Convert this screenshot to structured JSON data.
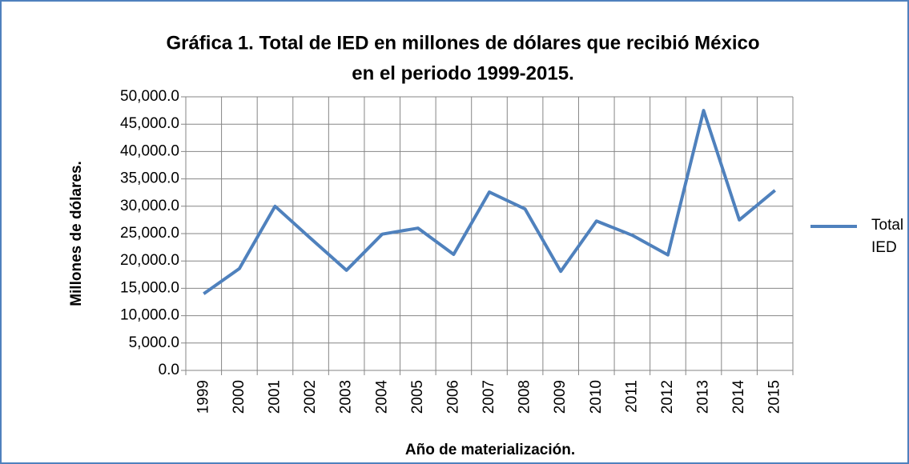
{
  "chart_data": {
    "type": "line",
    "title": [
      "Gráfica 1. Total de IED en millones de dólares que recibió México",
      "en el periodo 1999-2015."
    ],
    "x_label": "Año de materialización.",
    "y_label": "Millones de dólares.",
    "categories": [
      "1999",
      "2000",
      "2001",
      "2002",
      "2003",
      "2004",
      "2005",
      "2006",
      "2007",
      "2008",
      "2009",
      "2010",
      "2011",
      "2012",
      "2013",
      "2014",
      "2015"
    ],
    "series": [
      {
        "name": "Total IED",
        "color": "#4f81bd",
        "values": [
          14000,
          18600,
          30000,
          24100,
          18300,
          24900,
          26000,
          21200,
          32600,
          29500,
          18100,
          27300,
          24700,
          21100,
          47500,
          27500,
          32900
        ]
      }
    ],
    "ylim": [
      0,
      50000
    ],
    "yticks": [
      {
        "value": 0,
        "label": "0.0"
      },
      {
        "value": 5000,
        "label": "5,000.0"
      },
      {
        "value": 10000,
        "label": "10,000.0"
      },
      {
        "value": 15000,
        "label": "15,000.0"
      },
      {
        "value": 20000,
        "label": "20,000.0"
      },
      {
        "value": 25000,
        "label": "25,000.0"
      },
      {
        "value": 30000,
        "label": "30,000.0"
      },
      {
        "value": 35000,
        "label": "35,000.0"
      },
      {
        "value": 40000,
        "label": "40,000.0"
      },
      {
        "value": 45000,
        "label": "45,000.0"
      },
      {
        "value": 50000,
        "label": "50,000.0"
      }
    ],
    "grid": true,
    "legend": "right"
  }
}
